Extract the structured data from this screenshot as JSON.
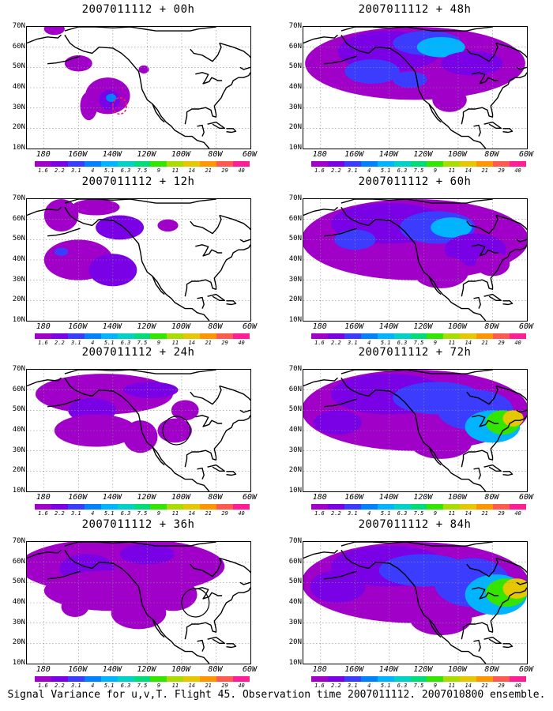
{
  "caption": "Signal Variance for u,v,T. Flight 45. Observation time 2007011112. 2007010800 ensemble.",
  "colorbar": {
    "labels": [
      "1.6",
      "2.2",
      "3.1",
      "4",
      "5.1",
      "6.3",
      "7.5",
      "9",
      "11",
      "14",
      "21",
      "29",
      "40"
    ],
    "colors": [
      "#a000c8",
      "#7a00e6",
      "#3c3cff",
      "#0082ff",
      "#00b4ff",
      "#00d2c8",
      "#00dc78",
      "#32e600",
      "#aadc00",
      "#e6c800",
      "#ff9600",
      "#ff5a50",
      "#ff1e96"
    ]
  },
  "axes": {
    "lat_ticks": [
      "70N",
      "60N",
      "50N",
      "40N",
      "30N",
      "20N",
      "10N"
    ],
    "lon_ticks": [
      "180",
      "160W",
      "140W",
      "120W",
      "100W",
      "80W",
      "60W"
    ]
  },
  "panels": [
    {
      "id": "p00",
      "title": "2007011112 + 00h",
      "lead": 0,
      "intensity": 0.15
    },
    {
      "id": "p48",
      "title": "2007011112 + 48h",
      "lead": 48,
      "intensity": 0.55
    },
    {
      "id": "p12",
      "title": "2007011112 + 12h",
      "lead": 12,
      "intensity": 0.2
    },
    {
      "id": "p60",
      "title": "2007011112 + 60h",
      "lead": 60,
      "intensity": 0.65
    },
    {
      "id": "p24",
      "title": "2007011112 + 24h",
      "lead": 24,
      "intensity": 0.3
    },
    {
      "id": "p72",
      "title": "2007011112 + 72h",
      "lead": 72,
      "intensity": 0.8
    },
    {
      "id": "p36",
      "title": "2007011112 + 36h",
      "lead": 36,
      "intensity": 0.4
    },
    {
      "id": "p84",
      "title": "2007011112 + 84h",
      "lead": 84,
      "intensity": 0.9
    }
  ]
}
